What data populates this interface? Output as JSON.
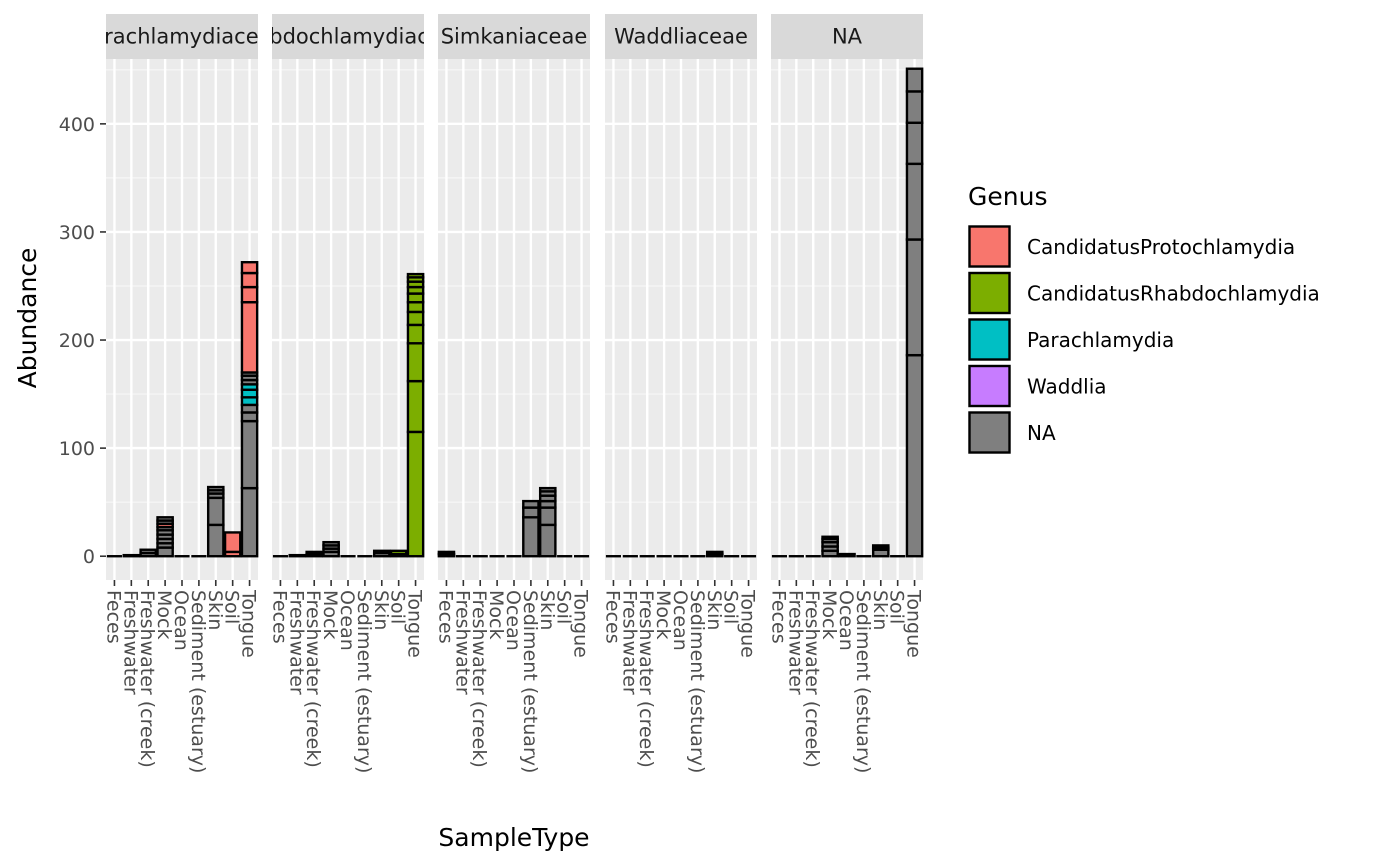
{
  "chart_data": {
    "type": "bar",
    "stacked": true,
    "facet_variable": "Family",
    "panels": [
      "Parachlamydiaceae",
      "Rhabdochlamydiaceae",
      "Simkaniaceae",
      "Waddliaceae",
      "NA"
    ],
    "categories": [
      "Feces",
      "Freshwater",
      "Freshwater (creek)",
      "Mock",
      "Ocean",
      "Sediment (estuary)",
      "Skin",
      "Soil",
      "Tongue"
    ],
    "xlabel": "SampleType",
    "ylabel": "Abundance",
    "ylim": [
      -22,
      460
    ],
    "yticks": [
      0,
      100,
      200,
      300,
      400
    ],
    "grid": true,
    "legend": {
      "title": "Genus",
      "position": "right",
      "entries": [
        {
          "label": "CandidatusProtochlamydia",
          "color": "#F8766D"
        },
        {
          "label": "CandidatusRhabdochlamydia",
          "color": "#7CAE00"
        },
        {
          "label": "Parachlamydia",
          "color": "#00BFC4"
        },
        {
          "label": "Waddlia",
          "color": "#C77CFF"
        },
        {
          "label": "NA",
          "color": "#7F7F7F"
        }
      ]
    },
    "bars": [
      {
        "panel": 0,
        "category": "Feces",
        "segments": []
      },
      {
        "panel": 0,
        "category": "Freshwater",
        "segments": [
          {
            "genus": "NA",
            "value": 1
          }
        ]
      },
      {
        "panel": 0,
        "category": "Freshwater (creek)",
        "segments": [
          {
            "genus": "NA",
            "value": 3
          },
          {
            "genus": "NA",
            "value": 3
          }
        ]
      },
      {
        "panel": 0,
        "category": "Mock",
        "segments": [
          {
            "genus": "NA",
            "value": 8
          },
          {
            "genus": "NA",
            "value": 4
          },
          {
            "genus": "NA",
            "value": 4
          },
          {
            "genus": "NA",
            "value": 4
          },
          {
            "genus": "NA",
            "value": 4
          },
          {
            "genus": "NA",
            "value": 3
          },
          {
            "genus": "CandidatusProtochlamydia",
            "value": 3
          },
          {
            "genus": "NA",
            "value": 3
          },
          {
            "genus": "NA",
            "value": 3
          }
        ]
      },
      {
        "panel": 0,
        "category": "Ocean",
        "segments": []
      },
      {
        "panel": 0,
        "category": "Sediment (estuary)",
        "segments": []
      },
      {
        "panel": 0,
        "category": "Skin",
        "segments": [
          {
            "genus": "NA",
            "value": 29
          },
          {
            "genus": "NA",
            "value": 25
          },
          {
            "genus": "NA",
            "value": 4
          },
          {
            "genus": "NA",
            "value": 3
          },
          {
            "genus": "NA",
            "value": 3
          }
        ]
      },
      {
        "panel": 0,
        "category": "Soil",
        "segments": [
          {
            "genus": "CandidatusProtochlamydia",
            "value": 4
          },
          {
            "genus": "CandidatusProtochlamydia",
            "value": 18
          }
        ]
      },
      {
        "panel": 0,
        "category": "Tongue",
        "segments": [
          {
            "genus": "NA",
            "value": 63
          },
          {
            "genus": "NA",
            "value": 62
          },
          {
            "genus": "NA",
            "value": 8
          },
          {
            "genus": "NA",
            "value": 7
          },
          {
            "genus": "Parachlamydia",
            "value": 7
          },
          {
            "genus": "Parachlamydia",
            "value": 7
          },
          {
            "genus": "Parachlamydia",
            "value": 5
          },
          {
            "genus": "NA",
            "value": 4
          },
          {
            "genus": "NA",
            "value": 4
          },
          {
            "genus": "NA",
            "value": 3
          },
          {
            "genus": "CandidatusProtochlamydia",
            "value": 65
          },
          {
            "genus": "CandidatusProtochlamydia",
            "value": 14
          },
          {
            "genus": "CandidatusProtochlamydia",
            "value": 13
          },
          {
            "genus": "CandidatusProtochlamydia",
            "value": 10
          }
        ]
      },
      {
        "panel": 1,
        "category": "Feces",
        "segments": []
      },
      {
        "panel": 1,
        "category": "Freshwater",
        "segments": [
          {
            "genus": "NA",
            "value": 1
          }
        ]
      },
      {
        "panel": 1,
        "category": "Freshwater (creek)",
        "segments": [
          {
            "genus": "NA",
            "value": 2
          },
          {
            "genus": "NA",
            "value": 2
          }
        ]
      },
      {
        "panel": 1,
        "category": "Mock",
        "segments": [
          {
            "genus": "NA",
            "value": 4
          },
          {
            "genus": "NA",
            "value": 3
          },
          {
            "genus": "NA",
            "value": 3
          },
          {
            "genus": "NA",
            "value": 3
          }
        ]
      },
      {
        "panel": 1,
        "category": "Ocean",
        "segments": []
      },
      {
        "panel": 1,
        "category": "Sediment (estuary)",
        "segments": []
      },
      {
        "panel": 1,
        "category": "Skin",
        "segments": [
          {
            "genus": "NA",
            "value": 3
          },
          {
            "genus": "NA",
            "value": 2
          }
        ]
      },
      {
        "panel": 1,
        "category": "Soil",
        "segments": [
          {
            "genus": "NA",
            "value": 2
          },
          {
            "genus": "CandidatusRhabdochlamydia",
            "value": 3
          }
        ]
      },
      {
        "panel": 1,
        "category": "Tongue",
        "segments": [
          {
            "genus": "CandidatusRhabdochlamydia",
            "value": 115
          },
          {
            "genus": "CandidatusRhabdochlamydia",
            "value": 47
          },
          {
            "genus": "CandidatusRhabdochlamydia",
            "value": 35
          },
          {
            "genus": "CandidatusRhabdochlamydia",
            "value": 17
          },
          {
            "genus": "CandidatusRhabdochlamydia",
            "value": 12
          },
          {
            "genus": "CandidatusRhabdochlamydia",
            "value": 9
          },
          {
            "genus": "CandidatusRhabdochlamydia",
            "value": 8
          },
          {
            "genus": "CandidatusRhabdochlamydia",
            "value": 6
          },
          {
            "genus": "CandidatusRhabdochlamydia",
            "value": 5
          },
          {
            "genus": "CandidatusRhabdochlamydia",
            "value": 4
          },
          {
            "genus": "CandidatusRhabdochlamydia",
            "value": 3
          }
        ]
      },
      {
        "panel": 2,
        "category": "Feces",
        "segments": [
          {
            "genus": "NA",
            "value": 2
          },
          {
            "genus": "NA",
            "value": 2
          }
        ]
      },
      {
        "panel": 2,
        "category": "Freshwater",
        "segments": []
      },
      {
        "panel": 2,
        "category": "Freshwater (creek)",
        "segments": []
      },
      {
        "panel": 2,
        "category": "Mock",
        "segments": []
      },
      {
        "panel": 2,
        "category": "Ocean",
        "segments": []
      },
      {
        "panel": 2,
        "category": "Sediment (estuary)",
        "segments": [
          {
            "genus": "NA",
            "value": 36
          },
          {
            "genus": "NA",
            "value": 9
          },
          {
            "genus": "NA",
            "value": 6
          }
        ]
      },
      {
        "panel": 2,
        "category": "Skin",
        "segments": [
          {
            "genus": "NA",
            "value": 29
          },
          {
            "genus": "NA",
            "value": 16
          },
          {
            "genus": "NA",
            "value": 6
          },
          {
            "genus": "NA",
            "value": 5
          },
          {
            "genus": "NA",
            "value": 4
          },
          {
            "genus": "NA",
            "value": 3
          }
        ]
      },
      {
        "panel": 2,
        "category": "Soil",
        "segments": []
      },
      {
        "panel": 2,
        "category": "Tongue",
        "segments": []
      },
      {
        "panel": 3,
        "category": "Feces",
        "segments": []
      },
      {
        "panel": 3,
        "category": "Freshwater",
        "segments": []
      },
      {
        "panel": 3,
        "category": "Freshwater (creek)",
        "segments": []
      },
      {
        "panel": 3,
        "category": "Mock",
        "segments": []
      },
      {
        "panel": 3,
        "category": "Ocean",
        "segments": []
      },
      {
        "panel": 3,
        "category": "Sediment (estuary)",
        "segments": []
      },
      {
        "panel": 3,
        "category": "Skin",
        "segments": [
          {
            "genus": "Waddlia",
            "value": 2
          },
          {
            "genus": "Waddlia",
            "value": 2
          }
        ]
      },
      {
        "panel": 3,
        "category": "Soil",
        "segments": []
      },
      {
        "panel": 3,
        "category": "Tongue",
        "segments": []
      },
      {
        "panel": 4,
        "category": "Feces",
        "segments": []
      },
      {
        "panel": 4,
        "category": "Freshwater",
        "segments": []
      },
      {
        "panel": 4,
        "category": "Freshwater (creek)",
        "segments": []
      },
      {
        "panel": 4,
        "category": "Mock",
        "segments": [
          {
            "genus": "NA",
            "value": 5
          },
          {
            "genus": "NA",
            "value": 4
          },
          {
            "genus": "NA",
            "value": 4
          },
          {
            "genus": "NA",
            "value": 3
          },
          {
            "genus": "NA",
            "value": 2
          }
        ]
      },
      {
        "panel": 4,
        "category": "Ocean",
        "segments": [
          {
            "genus": "NA",
            "value": 2
          }
        ]
      },
      {
        "panel": 4,
        "category": "Sediment (estuary)",
        "segments": []
      },
      {
        "panel": 4,
        "category": "Skin",
        "segments": [
          {
            "genus": "NA",
            "value": 6
          },
          {
            "genus": "NA",
            "value": 2
          },
          {
            "genus": "NA",
            "value": 2
          }
        ]
      },
      {
        "panel": 4,
        "category": "Soil",
        "segments": []
      },
      {
        "panel": 4,
        "category": "Tongue",
        "segments": [
          {
            "genus": "NA",
            "value": 186
          },
          {
            "genus": "NA",
            "value": 107
          },
          {
            "genus": "NA",
            "value": 70
          },
          {
            "genus": "NA",
            "value": 38
          },
          {
            "genus": "NA",
            "value": 29
          },
          {
            "genus": "NA",
            "value": 21
          }
        ]
      }
    ]
  }
}
